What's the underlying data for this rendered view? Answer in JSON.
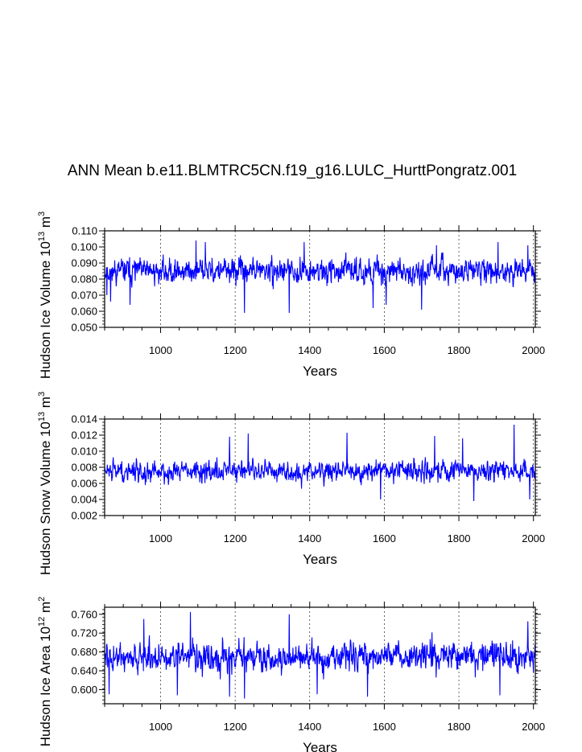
{
  "title": "ANN Mean b.e11.BLMTRC5CN.f19_g16.LULC_HurttPongratz.001",
  "line_color": "#0000ff",
  "chart_data": [
    {
      "type": "line",
      "xlabel": "Years",
      "ylabel": "Hudson Ice Volume",
      "yunit_base": "10",
      "yunit_exp": "13",
      "yunit": "m",
      "yunit_unit_exp": "3",
      "xlim": [
        850,
        2005
      ],
      "ylim": [
        0.05,
        0.11
      ],
      "xticks": [
        1000,
        1200,
        1400,
        1600,
        1800,
        2000
      ],
      "yticks": [
        0.05,
        0.06,
        0.07,
        0.08,
        0.09,
        0.1,
        0.11
      ],
      "ytick_labels": [
        "0.050",
        "0.060",
        "0.070",
        "0.080",
        "0.090",
        "0.100",
        "0.110"
      ],
      "grid": "dashed vertical at major x ticks",
      "series_summary": {
        "mean": 0.085,
        "std": 0.0065,
        "min": 0.059,
        "max": 0.104
      },
      "highlights": [
        {
          "x": 856,
          "y": 0.07
        },
        {
          "x": 866,
          "y": 0.066
        },
        {
          "x": 918,
          "y": 0.064
        },
        {
          "x": 1095,
          "y": 0.104
        },
        {
          "x": 1120,
          "y": 0.103
        },
        {
          "x": 1225,
          "y": 0.059
        },
        {
          "x": 1345,
          "y": 0.059
        },
        {
          "x": 1385,
          "y": 0.103
        },
        {
          "x": 1570,
          "y": 0.062
        },
        {
          "x": 1605,
          "y": 0.064
        },
        {
          "x": 1700,
          "y": 0.061
        },
        {
          "x": 1740,
          "y": 0.101
        },
        {
          "x": 1905,
          "y": 0.103
        },
        {
          "x": 1985,
          "y": 0.101
        }
      ]
    },
    {
      "type": "line",
      "xlabel": "Years",
      "ylabel": "Hudson Snow Volume",
      "yunit_base": "10",
      "yunit_exp": "13",
      "yunit": "m",
      "yunit_unit_exp": "3",
      "xlim": [
        850,
        2005
      ],
      "ylim": [
        0.002,
        0.014
      ],
      "xticks": [
        1000,
        1200,
        1400,
        1600,
        1800,
        2000
      ],
      "yticks": [
        0.002,
        0.004,
        0.006,
        0.008,
        0.01,
        0.012,
        0.014
      ],
      "ytick_labels": [
        "0.002",
        "0.004",
        "0.006",
        "0.008",
        "0.010",
        "0.012",
        "0.014"
      ],
      "grid": "dashed vertical at major x ticks",
      "series_summary": {
        "mean": 0.0075,
        "std": 0.0011,
        "min": 0.0038,
        "max": 0.0133
      },
      "highlights": [
        {
          "x": 1185,
          "y": 0.0118
        },
        {
          "x": 1235,
          "y": 0.0122
        },
        {
          "x": 1500,
          "y": 0.0123
        },
        {
          "x": 1590,
          "y": 0.004
        },
        {
          "x": 1735,
          "y": 0.0119
        },
        {
          "x": 1810,
          "y": 0.0116
        },
        {
          "x": 1840,
          "y": 0.0038
        },
        {
          "x": 1948,
          "y": 0.0133
        },
        {
          "x": 1990,
          "y": 0.004
        }
      ]
    },
    {
      "type": "line",
      "xlabel": "Years",
      "ylabel": "Hudson Ice Area",
      "yunit_base": "10",
      "yunit_exp": "12",
      "yunit": "m",
      "yunit_unit_exp": "2",
      "xlim": [
        850,
        2005
      ],
      "ylim": [
        0.57,
        0.775
      ],
      "xticks": [
        1000,
        1200,
        1400,
        1600,
        1800,
        2000
      ],
      "yticks": [
        0.6,
        0.64,
        0.68,
        0.72,
        0.76
      ],
      "ytick_labels": [
        "0.600",
        "0.640",
        "0.680",
        "0.720",
        "0.760"
      ],
      "grid": "dashed vertical at major x ticks",
      "series_summary": {
        "mean": 0.67,
        "std": 0.027,
        "min": 0.58,
        "max": 0.765
      },
      "highlights": [
        {
          "x": 862,
          "y": 0.59
        },
        {
          "x": 955,
          "y": 0.75
        },
        {
          "x": 1045,
          "y": 0.588
        },
        {
          "x": 1080,
          "y": 0.765
        },
        {
          "x": 1185,
          "y": 0.585
        },
        {
          "x": 1225,
          "y": 0.581
        },
        {
          "x": 1345,
          "y": 0.76
        },
        {
          "x": 1420,
          "y": 0.59
        },
        {
          "x": 1555,
          "y": 0.585
        },
        {
          "x": 1910,
          "y": 0.588
        },
        {
          "x": 1985,
          "y": 0.745
        }
      ]
    }
  ]
}
